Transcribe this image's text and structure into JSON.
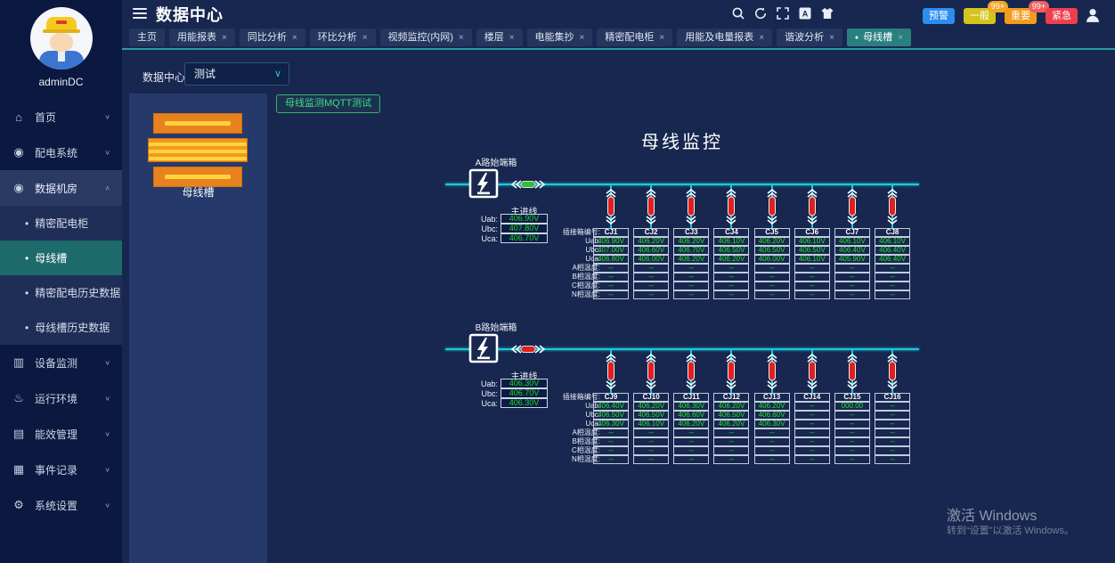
{
  "sidebar": {
    "username": "adminDC",
    "items": [
      {
        "label": "首页",
        "icon": "home-icon",
        "glyph": "⌂"
      },
      {
        "label": "配电系统",
        "icon": "power-distribution-icon",
        "glyph": "◉"
      },
      {
        "label": "数据机房",
        "icon": "data-room-icon",
        "glyph": "◉",
        "expanded": true,
        "children": [
          {
            "label": "精密配电柜",
            "active": false
          },
          {
            "label": "母线槽",
            "active": true
          },
          {
            "label": "精密配电历史数据",
            "active": false
          },
          {
            "label": "母线槽历史数据",
            "active": false
          }
        ]
      },
      {
        "label": "设备监测",
        "icon": "device-monitor-icon",
        "glyph": "▥"
      },
      {
        "label": "运行环境",
        "icon": "environment-icon",
        "glyph": "♨"
      },
      {
        "label": "能效管理",
        "icon": "energy-icon",
        "glyph": "▤"
      },
      {
        "label": "事件记录",
        "icon": "event-log-icon",
        "glyph": "▦"
      },
      {
        "label": "系统设置",
        "icon": "settings-icon",
        "glyph": "⚙"
      }
    ]
  },
  "header": {
    "title": "数据中心",
    "buttons": [
      {
        "label": "预警",
        "color": "#2d8cf0"
      },
      {
        "label": "一般",
        "color": "#d4c41c",
        "badge": "99+",
        "badge_color": "#f5a623"
      },
      {
        "label": "重要",
        "color": "#f29b1d",
        "badge": "99+",
        "badge_color": "#f25f5f"
      },
      {
        "label": "紧急",
        "color": "#ed3f4e"
      }
    ]
  },
  "tabs": [
    {
      "label": "主页",
      "closable": false,
      "active": false
    },
    {
      "label": "用能报表",
      "closable": true,
      "active": false
    },
    {
      "label": "同比分析",
      "closable": true,
      "active": false
    },
    {
      "label": "环比分析",
      "closable": true,
      "active": false
    },
    {
      "label": "视频监控(内网)",
      "closable": true,
      "active": false
    },
    {
      "label": "楼层",
      "closable": true,
      "active": false
    },
    {
      "label": "电能集抄",
      "closable": true,
      "active": false
    },
    {
      "label": "精密配电柜",
      "closable": true,
      "active": false
    },
    {
      "label": "用能及电量报表",
      "closable": true,
      "active": false
    },
    {
      "label": "谐波分析",
      "closable": true,
      "active": false
    },
    {
      "label": "母线槽",
      "closable": true,
      "active": true
    }
  ],
  "toolbar": {
    "datacenter_label": "数据中心",
    "datacenter_value": "测试",
    "mqtt_button_label": "母线监测MQTT测试"
  },
  "device_panel": {
    "label": "母线槽"
  },
  "diagram": {
    "title": "母线监控",
    "row_labels": [
      "插接箱编号:",
      "Uab:",
      "Ubc:",
      "Uca:",
      "A相温度:",
      "B相温度:",
      "C相温度:",
      "N相温度:"
    ],
    "incoming_labels": [
      "Uab:",
      "Ubc:",
      "Uca:"
    ],
    "bus_color": "#19ccd8",
    "sections": [
      {
        "source_label": "A路始端箱",
        "incoming_title": "主进线",
        "incoming": [
          "406.90V",
          "407.80V",
          "406.70V"
        ],
        "connector_color": "#2fbf3a",
        "columns": [
          {
            "id": "CJ1",
            "values": [
              "406.90V",
              "407.00V",
              "406.80V",
              "--",
              "--",
              "--",
              "--"
            ]
          },
          {
            "id": "CJ2",
            "values": [
              "406.20V",
              "406.60V",
              "406.00V",
              "--",
              "--",
              "--",
              "--"
            ]
          },
          {
            "id": "CJ3",
            "values": [
              "406.20V",
              "406.70V",
              "406.20V",
              "--",
              "--",
              "--",
              "--"
            ]
          },
          {
            "id": "CJ4",
            "values": [
              "406.10V",
              "406.50V",
              "406.20V",
              "--",
              "--",
              "--",
              "--"
            ]
          },
          {
            "id": "CJ5",
            "values": [
              "406.20V",
              "406.50V",
              "406.00V",
              "--",
              "--",
              "--",
              "--"
            ]
          },
          {
            "id": "CJ6",
            "values": [
              "406.10V",
              "406.50V",
              "406.10V",
              "--",
              "--",
              "--",
              "--"
            ]
          },
          {
            "id": "CJ7",
            "values": [
              "406.10V",
              "406.40V",
              "405.90V",
              "--",
              "--",
              "--",
              "--"
            ]
          },
          {
            "id": "CJ8",
            "values": [
              "406.10V",
              "406.40V",
              "406.40V",
              "--",
              "--",
              "--",
              "--"
            ]
          }
        ]
      },
      {
        "source_label": "B路始端箱",
        "incoming_title": "主进线",
        "incoming": [
          "406.30V",
          "406.70V",
          "406.30V"
        ],
        "connector_color": "#e01f1f",
        "columns": [
          {
            "id": "CJ9",
            "values": [
              "406.40V",
              "406.50V",
              "406.30V",
              "--",
              "--",
              "--",
              "--"
            ]
          },
          {
            "id": "CJ10",
            "values": [
              "406.20V",
              "406.50V",
              "406.10V",
              "--",
              "--",
              "--",
              "--"
            ]
          },
          {
            "id": "CJ11",
            "values": [
              "406.30V",
              "406.60V",
              "406.20V",
              "--",
              "--",
              "--",
              "--"
            ]
          },
          {
            "id": "CJ12",
            "values": [
              "406.20V",
              "406.50V",
              "406.20V",
              "--",
              "--",
              "--",
              "--"
            ]
          },
          {
            "id": "CJ13",
            "values": [
              "406.20V",
              "406.60V",
              "406.30V",
              "--",
              "--",
              "--",
              "--"
            ]
          },
          {
            "id": "CJ14",
            "values": [
              "--",
              "--",
              "--",
              "--",
              "--",
              "--",
              "--"
            ]
          },
          {
            "id": "CJ15",
            "values": [
              "000.00",
              "--",
              "--",
              "--",
              "--",
              "--",
              "--"
            ]
          },
          {
            "id": "CJ16",
            "values": [
              "--",
              "--",
              "--",
              "--",
              "--",
              "--",
              "--"
            ]
          }
        ]
      }
    ]
  },
  "watermark": {
    "line1": "激活 Windows",
    "line2": "转到“设置”以激活 Windows。"
  }
}
